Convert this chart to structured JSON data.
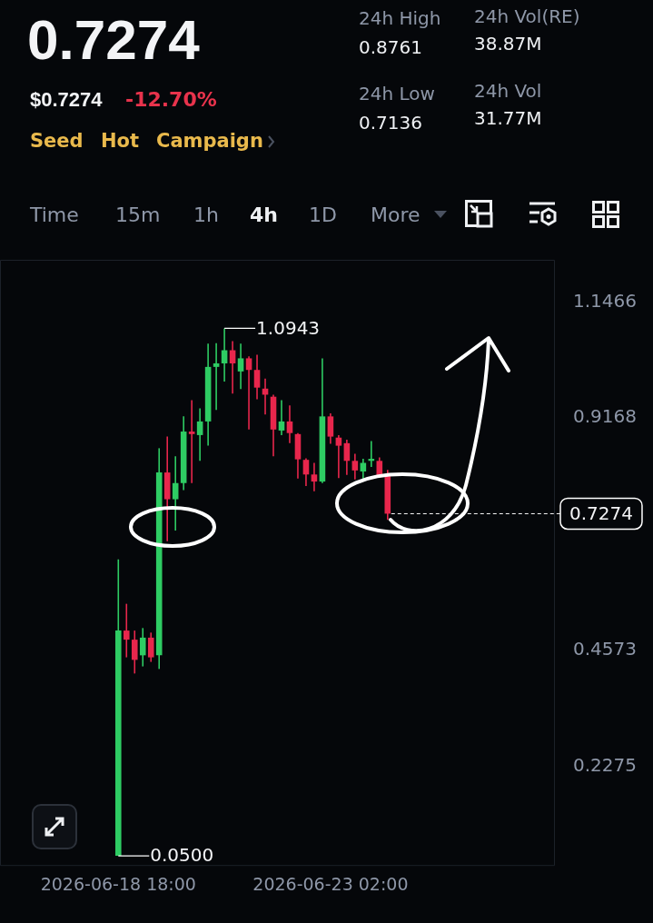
{
  "chart_data": {
    "type": "candlestick",
    "title": "0.7274",
    "subtitle": "$0.7274",
    "x": [
      "2026-06-18T18:00",
      "2026-06-18T22:00",
      "2026-06-19T02:00",
      "2026-06-19T06:00",
      "2026-06-19T10:00",
      "2026-06-19T14:00",
      "2026-06-19T18:00",
      "2026-06-19T22:00",
      "2026-06-20T02:00",
      "2026-06-20T06:00",
      "2026-06-20T10:00",
      "2026-06-20T14:00",
      "2026-06-20T18:00",
      "2026-06-20T22:00",
      "2026-06-21T02:00",
      "2026-06-21T06:00",
      "2026-06-21T10:00",
      "2026-06-21T14:00",
      "2026-06-21T18:00",
      "2026-06-21T22:00",
      "2026-06-22T02:00",
      "2026-06-22T06:00",
      "2026-06-22T10:00",
      "2026-06-22T14:00",
      "2026-06-22T18:00",
      "2026-06-22T22:00",
      "2026-06-23T02:00",
      "2026-06-23T06:00",
      "2026-06-23T10:00",
      "2026-06-23T14:00",
      "2026-06-23T18:00",
      "2026-06-23T22:00",
      "2026-06-24T02:00",
      "2026-06-24T06:00"
    ],
    "ohlc": [
      [
        0.05,
        0.637,
        0.05,
        0.496
      ],
      [
        0.496,
        0.549,
        0.443,
        0.478
      ],
      [
        0.478,
        0.496,
        0.411,
        0.438
      ],
      [
        0.447,
        0.501,
        0.425,
        0.482
      ],
      [
        0.482,
        0.492,
        0.434,
        0.443
      ],
      [
        0.447,
        0.857,
        0.42,
        0.809
      ],
      [
        0.809,
        0.88,
        0.673,
        0.756
      ],
      [
        0.756,
        0.841,
        0.694,
        0.788
      ],
      [
        0.788,
        0.92,
        0.774,
        0.89
      ],
      [
        0.89,
        0.952,
        0.788,
        0.885
      ],
      [
        0.883,
        0.936,
        0.832,
        0.91
      ],
      [
        0.91,
        1.064,
        0.862,
        1.018
      ],
      [
        1.018,
        1.065,
        0.933,
        1.025
      ],
      [
        1.025,
        1.0943,
        0.989,
        1.051
      ],
      [
        1.051,
        1.069,
        0.965,
        1.025
      ],
      [
        1.009,
        1.064,
        0.974,
        1.035
      ],
      [
        1.035,
        1.039,
        0.894,
        1.012
      ],
      [
        1.012,
        1.042,
        0.954,
        0.977
      ],
      [
        0.975,
        0.995,
        0.924,
        0.963
      ],
      [
        0.959,
        0.963,
        0.841,
        0.894
      ],
      [
        0.892,
        0.952,
        0.883,
        0.91
      ],
      [
        0.91,
        0.942,
        0.867,
        0.887
      ],
      [
        0.885,
        0.887,
        0.797,
        0.835
      ],
      [
        0.834,
        0.837,
        0.782,
        0.805
      ],
      [
        0.805,
        0.828,
        0.772,
        0.791
      ],
      [
        0.791,
        1.035,
        0.788,
        0.92
      ],
      [
        0.92,
        0.926,
        0.866,
        0.88
      ],
      [
        0.878,
        0.883,
        0.798,
        0.862
      ],
      [
        0.867,
        0.874,
        0.804,
        0.832
      ],
      [
        0.832,
        0.846,
        0.795,
        0.813
      ],
      [
        0.811,
        0.836,
        0.793,
        0.828
      ],
      [
        0.832,
        0.871,
        0.82,
        0.836
      ],
      [
        0.832,
        0.839,
        0.8,
        0.804
      ],
      [
        0.805,
        0.814,
        0.715,
        0.7274
      ]
    ],
    "colors": [
      "#2ecc63",
      "#e8264c",
      "#e8264c",
      "#2ecc63",
      "#e8264c",
      "#2ecc63",
      "#e8264c",
      "#2ecc63",
      "#2ecc63",
      "#e8264c",
      "#2ecc63",
      "#2ecc63",
      "#2ecc63",
      "#2ecc63",
      "#e8264c",
      "#2ecc63",
      "#e8264c",
      "#e8264c",
      "#e8264c",
      "#e8264c",
      "#2ecc63",
      "#e8264c",
      "#e8264c",
      "#e8264c",
      "#e8264c",
      "#2ecc63",
      "#e8264c",
      "#e8264c",
      "#e8264c",
      "#e8264c",
      "#2ecc63",
      "#2ecc63",
      "#e8264c",
      "#e8264c"
    ],
    "xlim": [
      "2026-06-16T08:00",
      "2026-06-27T16:00"
    ],
    "xticks": [
      {
        "value": "2026-06-18T18:00",
        "label": "2026-06-18 18:00"
      },
      {
        "value": "2026-06-23T02:00",
        "label": "2026-06-23 02:00"
      }
    ],
    "ylim": [
      0.03,
      1.23
    ],
    "yticks": [
      0.2275,
      0.4573,
      0.9168,
      1.1466
    ],
    "grid": false,
    "legend": false,
    "ref_lines": [
      {
        "axis": "y",
        "value": 0.7274,
        "label": "0.7274",
        "line_style": "dashed",
        "color": "#ffffff"
      }
    ],
    "annotations": [
      "-12.70%",
      "Seed",
      "Hot",
      "Campaign",
      "24h High",
      "0.8761",
      "24h Low",
      "0.7136",
      "24h Vol(RE)",
      "38.87M",
      "24h Vol",
      "31.77M",
      "Time",
      "15m",
      "1h",
      "4h",
      "1D",
      "More",
      {
        "text": "1.0943",
        "x": "2026-06-20T22:00",
        "y": 1.0943
      },
      {
        "text": "0.0500",
        "x": "2026-06-18T18:00",
        "y": 0.05
      }
    ]
  }
}
